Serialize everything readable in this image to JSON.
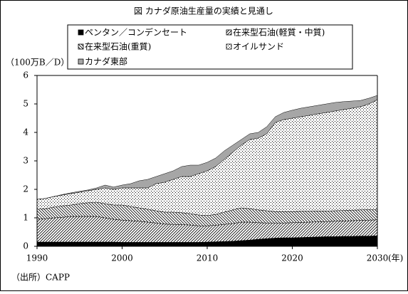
{
  "chart_data": {
    "type": "stacked_area",
    "title": "図 カナダ原油生産量の実績と見通し",
    "y_label": "（100万B／D）",
    "x_label": "(年)",
    "source": "（出所）CAPP",
    "x": [
      1990,
      1991,
      1992,
      1993,
      1994,
      1995,
      1996,
      1997,
      1998,
      1999,
      2000,
      2001,
      2002,
      2003,
      2004,
      2005,
      2006,
      2007,
      2008,
      2009,
      2010,
      2011,
      2012,
      2013,
      2014,
      2015,
      2016,
      2017,
      2018,
      2019,
      2020,
      2021,
      2022,
      2023,
      2024,
      2025,
      2026,
      2027,
      2028,
      2029,
      2030
    ],
    "xlim": [
      1990,
      2030
    ],
    "xticks": [
      1990,
      2000,
      2010,
      2020,
      2030
    ],
    "ylim": [
      0,
      6
    ],
    "yticks": [
      0,
      1,
      2,
      3,
      4,
      5,
      6
    ],
    "series": [
      {
        "name": "ペンタン／コンデンセート",
        "color": "#000000",
        "pattern": "solid",
        "values": [
          0.15,
          0.15,
          0.15,
          0.15,
          0.15,
          0.15,
          0.15,
          0.15,
          0.15,
          0.15,
          0.14,
          0.14,
          0.14,
          0.14,
          0.14,
          0.14,
          0.14,
          0.14,
          0.14,
          0.14,
          0.15,
          0.16,
          0.17,
          0.18,
          0.2,
          0.22,
          0.25,
          0.27,
          0.29,
          0.3,
          0.3,
          0.31,
          0.32,
          0.33,
          0.34,
          0.34,
          0.35,
          0.35,
          0.36,
          0.36,
          0.37
        ]
      },
      {
        "name": "在来型石油(軽質・中質)",
        "color": "#000000",
        "pattern": "slash",
        "values": [
          0.8,
          0.82,
          0.85,
          0.87,
          0.9,
          0.9,
          0.9,
          0.9,
          0.85,
          0.8,
          0.78,
          0.76,
          0.74,
          0.71,
          0.68,
          0.64,
          0.63,
          0.62,
          0.61,
          0.58,
          0.57,
          0.58,
          0.6,
          0.62,
          0.65,
          0.63,
          0.58,
          0.55,
          0.53,
          0.52,
          0.53,
          0.53,
          0.53,
          0.53,
          0.53,
          0.54,
          0.54,
          0.55,
          0.55,
          0.56,
          0.56
        ]
      },
      {
        "name": "在来型石油(重質)",
        "color": "#000000",
        "pattern": "backslash",
        "values": [
          0.35,
          0.35,
          0.38,
          0.4,
          0.4,
          0.45,
          0.48,
          0.5,
          0.5,
          0.5,
          0.53,
          0.5,
          0.47,
          0.45,
          0.43,
          0.42,
          0.43,
          0.42,
          0.4,
          0.38,
          0.36,
          0.38,
          0.43,
          0.48,
          0.5,
          0.47,
          0.45,
          0.43,
          0.4,
          0.4,
          0.39,
          0.39,
          0.38,
          0.38,
          0.37,
          0.37,
          0.37,
          0.37,
          0.37,
          0.37,
          0.37
        ]
      },
      {
        "name": "オイルサンド",
        "color": "#000000",
        "pattern": "dots",
        "values": [
          0.35,
          0.36,
          0.37,
          0.38,
          0.4,
          0.4,
          0.42,
          0.45,
          0.55,
          0.55,
          0.6,
          0.65,
          0.7,
          0.75,
          0.95,
          1.05,
          1.15,
          1.27,
          1.3,
          1.45,
          1.57,
          1.68,
          1.85,
          2.02,
          2.2,
          2.43,
          2.52,
          2.7,
          3.13,
          3.23,
          3.28,
          3.32,
          3.37,
          3.41,
          3.46,
          3.5,
          3.54,
          3.58,
          3.62,
          3.71,
          3.85
        ]
      },
      {
        "name": "カナダ東部",
        "color": "#a6a6a6",
        "pattern": "solid",
        "values": [
          0,
          0,
          0,
          0.02,
          0.03,
          0.03,
          0.03,
          0.05,
          0.1,
          0.08,
          0.1,
          0.15,
          0.25,
          0.3,
          0.25,
          0.3,
          0.3,
          0.35,
          0.4,
          0.3,
          0.3,
          0.3,
          0.3,
          0.25,
          0.2,
          0.2,
          0.2,
          0.25,
          0.2,
          0.25,
          0.28,
          0.3,
          0.3,
          0.3,
          0.3,
          0.3,
          0.28,
          0.25,
          0.22,
          0.2,
          0.15
        ]
      }
    ]
  }
}
